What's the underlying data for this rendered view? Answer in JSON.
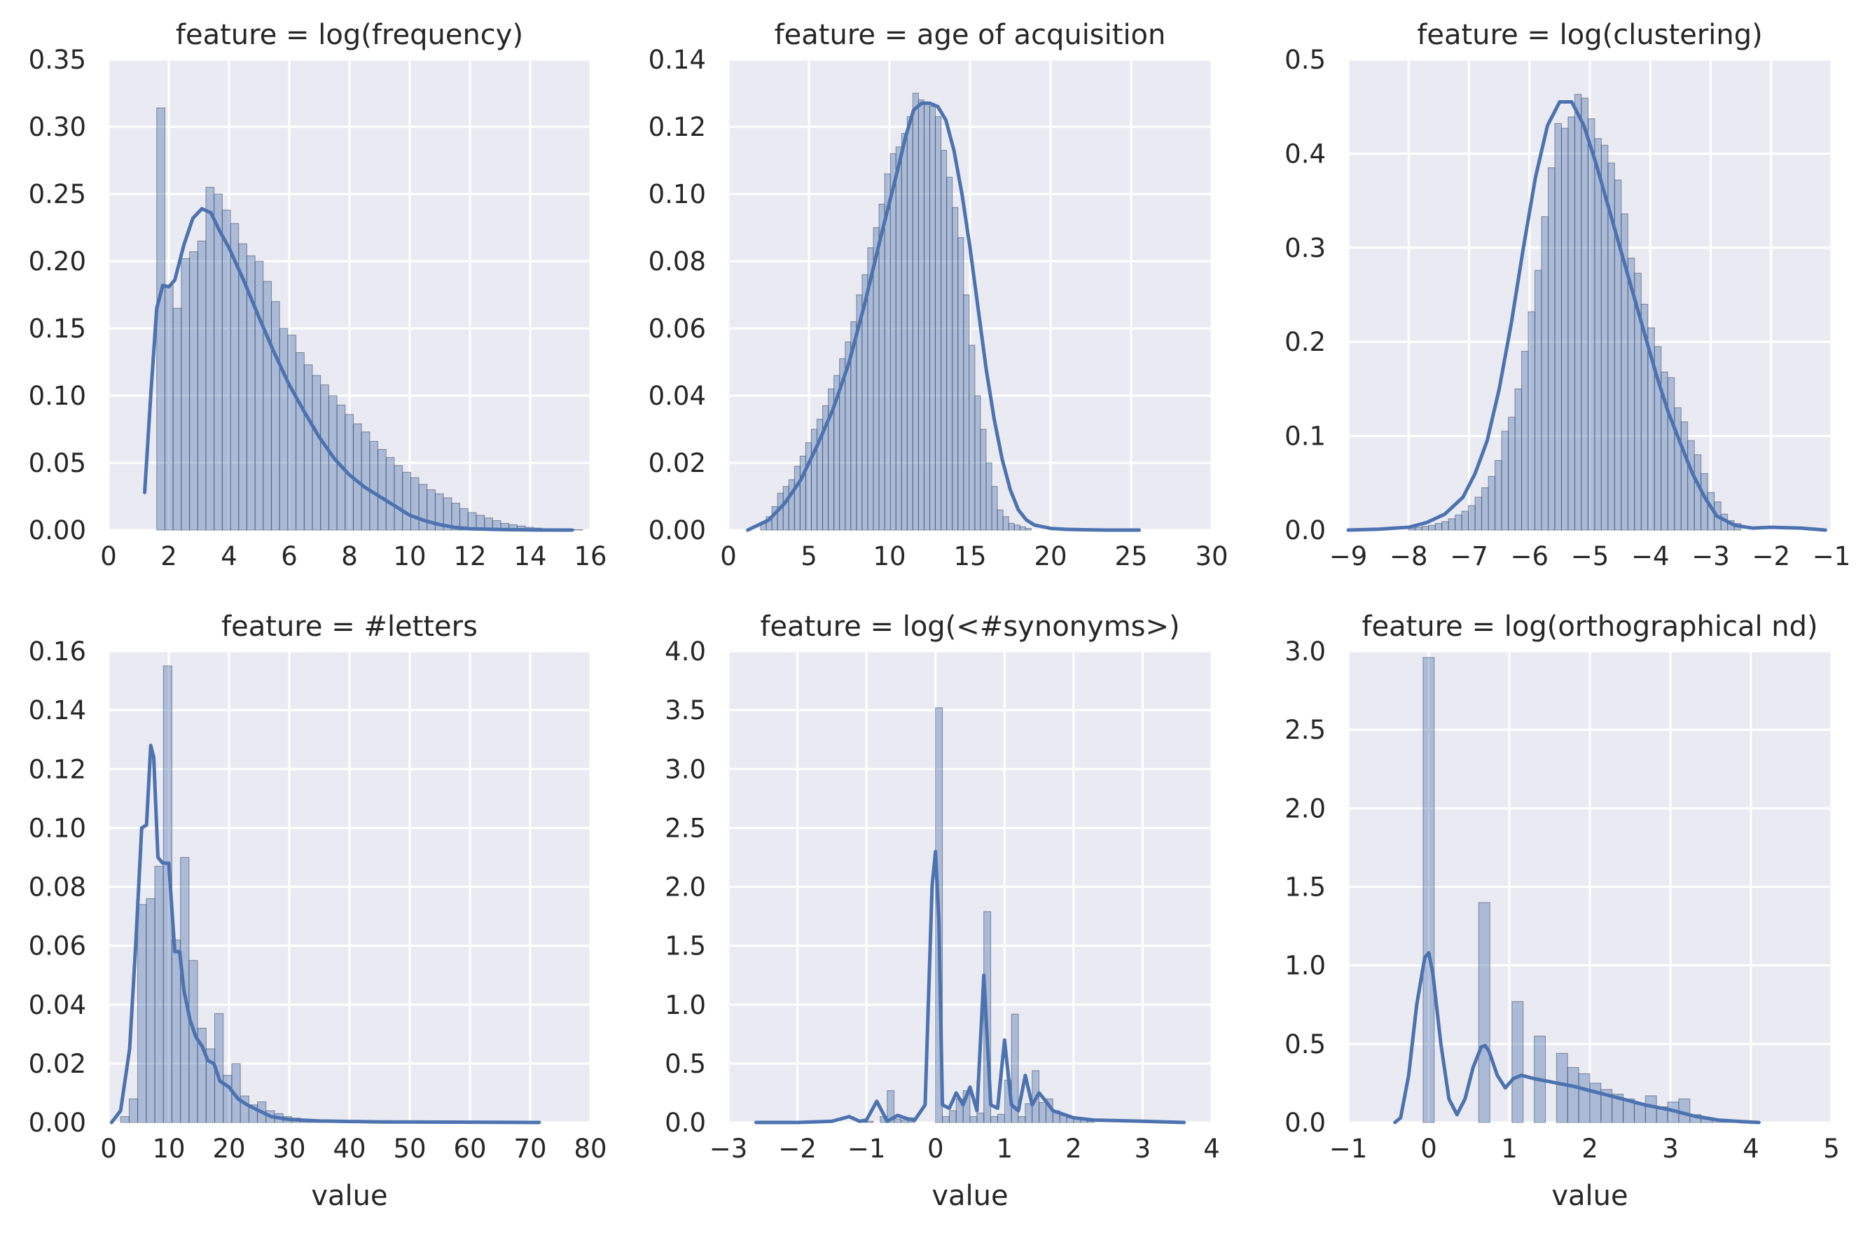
{
  "chart_data": [
    {
      "type": "histogram",
      "title": "feature = log(frequency)",
      "xlabel": "",
      "xlim": [
        0,
        16
      ],
      "ylim": [
        0,
        0.35
      ],
      "xticks": [
        "0",
        "2",
        "4",
        "6",
        "8",
        "10",
        "12",
        "14",
        "16"
      ],
      "yticks": [
        "0.00",
        "0.05",
        "0.10",
        "0.15",
        "0.20",
        "0.25",
        "0.30",
        "0.35"
      ],
      "bins": {
        "start": 1.6,
        "width": 0.272,
        "heights": [
          0.314,
          0.182,
          0.165,
          0.202,
          0.207,
          0.215,
          0.255,
          0.25,
          0.238,
          0.228,
          0.213,
          0.204,
          0.2,
          0.185,
          0.17,
          0.15,
          0.145,
          0.132,
          0.123,
          0.115,
          0.108,
          0.1,
          0.093,
          0.086,
          0.079,
          0.073,
          0.066,
          0.06,
          0.054,
          0.048,
          0.043,
          0.039,
          0.034,
          0.03,
          0.027,
          0.024,
          0.02,
          0.016,
          0.013,
          0.011,
          0.009,
          0.007,
          0.005,
          0.004,
          0.003,
          0.002,
          0.0015,
          0.001,
          0.0008,
          0.0006,
          0.0004,
          0.0003
        ]
      },
      "kde": {
        "x": [
          1.2,
          1.4,
          1.6,
          1.8,
          2.0,
          2.2,
          2.5,
          2.8,
          3.1,
          3.4,
          3.7,
          4.0,
          4.5,
          5.0,
          5.5,
          6.0,
          6.5,
          7.0,
          7.5,
          8.0,
          8.5,
          9.0,
          9.5,
          10.0,
          10.5,
          11.0,
          11.5,
          12.0,
          13.0,
          14.0,
          15.4
        ],
        "y": [
          0.028,
          0.1,
          0.165,
          0.182,
          0.181,
          0.186,
          0.212,
          0.232,
          0.239,
          0.236,
          0.222,
          0.21,
          0.185,
          0.158,
          0.132,
          0.108,
          0.088,
          0.069,
          0.053,
          0.041,
          0.032,
          0.025,
          0.018,
          0.011,
          0.007,
          0.004,
          0.002,
          0.001,
          0.0004,
          0.0001,
          0.0
        ]
      }
    },
    {
      "type": "histogram",
      "title": "feature = age of acquisition",
      "xlabel": "",
      "xlim": [
        0,
        30
      ],
      "ylim": [
        0,
        0.14
      ],
      "xticks": [
        "0",
        "5",
        "10",
        "15",
        "20",
        "25",
        "30"
      ],
      "yticks": [
        "0.00",
        "0.02",
        "0.04",
        "0.06",
        "0.08",
        "0.10",
        "0.12",
        "0.14"
      ],
      "bins": {
        "start": 2.0,
        "width": 0.35,
        "heights": [
          0.002,
          0.004,
          0.007,
          0.011,
          0.013,
          0.015,
          0.019,
          0.022,
          0.026,
          0.03,
          0.033,
          0.037,
          0.042,
          0.046,
          0.051,
          0.056,
          0.062,
          0.07,
          0.076,
          0.084,
          0.09,
          0.097,
          0.106,
          0.112,
          0.114,
          0.118,
          0.123,
          0.13,
          0.128,
          0.127,
          0.126,
          0.123,
          0.113,
          0.105,
          0.096,
          0.087,
          0.07,
          0.055,
          0.04,
          0.03,
          0.02,
          0.013,
          0.006,
          0.004,
          0.002,
          0.0015,
          0.001,
          0.0005
        ]
      },
      "kde": {
        "x": [
          1.2,
          2.5,
          3.5,
          4.5,
          5.5,
          6.5,
          7.5,
          8.5,
          9.5,
          10.5,
          11.0,
          11.5,
          12.0,
          12.5,
          13.0,
          13.5,
          14.0,
          14.5,
          15.0,
          15.5,
          16.0,
          16.5,
          17.0,
          17.5,
          18.0,
          18.5,
          19.0,
          20.0,
          21.0,
          22.0,
          23.5,
          25.5
        ],
        "y": [
          0.0,
          0.003,
          0.008,
          0.015,
          0.025,
          0.036,
          0.05,
          0.068,
          0.088,
          0.107,
          0.117,
          0.125,
          0.127,
          0.127,
          0.126,
          0.122,
          0.113,
          0.1,
          0.084,
          0.066,
          0.048,
          0.033,
          0.021,
          0.012,
          0.006,
          0.003,
          0.0015,
          0.0005,
          0.0002,
          0.0001,
          0.0,
          0.0
        ]
      }
    },
    {
      "type": "histogram",
      "title": "feature = log(clustering)",
      "xlabel": "",
      "xlim": [
        -9,
        -1
      ],
      "ylim": [
        0,
        0.5
      ],
      "xticks": [
        "−9",
        "−8",
        "−7",
        "−6",
        "−5",
        "−4",
        "−3",
        "−2",
        "−1"
      ],
      "yticks": [
        "0.0",
        "0.1",
        "0.2",
        "0.3",
        "0.4",
        "0.5"
      ],
      "bins": {
        "start": -8.0,
        "width": 0.11,
        "heights": [
          0.002,
          0.003,
          0.004,
          0.005,
          0.007,
          0.009,
          0.012,
          0.016,
          0.02,
          0.026,
          0.035,
          0.045,
          0.057,
          0.074,
          0.105,
          0.12,
          0.15,
          0.19,
          0.232,
          0.276,
          0.333,
          0.385,
          0.432,
          0.427,
          0.439,
          0.463,
          0.459,
          0.437,
          0.416,
          0.409,
          0.39,
          0.372,
          0.336,
          0.289,
          0.273,
          0.24,
          0.215,
          0.195,
          0.168,
          0.162,
          0.13,
          0.115,
          0.095,
          0.08,
          0.06,
          0.04,
          0.03,
          0.017,
          0.01,
          0.007
        ]
      },
      "kde": {
        "x": [
          -9.0,
          -8.5,
          -8.0,
          -7.7,
          -7.4,
          -7.1,
          -6.9,
          -6.7,
          -6.5,
          -6.3,
          -6.1,
          -5.9,
          -5.7,
          -5.5,
          -5.3,
          -5.1,
          -4.9,
          -4.7,
          -4.5,
          -4.3,
          -4.1,
          -3.9,
          -3.7,
          -3.5,
          -3.3,
          -3.1,
          -2.9,
          -2.6,
          -2.3,
          -2.0,
          -1.5,
          -1.1
        ],
        "y": [
          0.0,
          0.001,
          0.003,
          0.008,
          0.017,
          0.035,
          0.06,
          0.095,
          0.15,
          0.22,
          0.3,
          0.375,
          0.43,
          0.455,
          0.455,
          0.43,
          0.39,
          0.345,
          0.3,
          0.255,
          0.21,
          0.165,
          0.125,
          0.092,
          0.06,
          0.035,
          0.015,
          0.005,
          0.002,
          0.003,
          0.002,
          0.0
        ]
      }
    },
    {
      "type": "histogram",
      "title": "feature = #letters",
      "xlabel": "value",
      "xlim": [
        0,
        80
      ],
      "ylim": [
        0,
        0.16
      ],
      "xticks": [
        "0",
        "10",
        "20",
        "30",
        "40",
        "50",
        "60",
        "70",
        "80"
      ],
      "yticks": [
        "0.00",
        "0.02",
        "0.04",
        "0.06",
        "0.08",
        "0.10",
        "0.12",
        "0.14",
        "0.16"
      ],
      "bins": {
        "start": 2.0,
        "width": 1.42,
        "heights": [
          0.002,
          0.008,
          0.074,
          0.076,
          0.087,
          0.155,
          0.062,
          0.09,
          0.055,
          0.032,
          0.025,
          0.037,
          0.016,
          0.02,
          0.009,
          0.006,
          0.007,
          0.004,
          0.003,
          0.002,
          0.0015,
          0.001,
          0.0008,
          0.0006,
          0.0005,
          0.0004,
          0.0003,
          0.0002,
          0.0002,
          0.0001
        ]
      },
      "kde": {
        "x": [
          0.5,
          2.0,
          3.5,
          4.5,
          5.5,
          6.3,
          7.0,
          7.5,
          8.2,
          9.0,
          10.0,
          11.0,
          11.8,
          12.5,
          13.5,
          14.5,
          15.5,
          16.5,
          17.5,
          18.5,
          20.0,
          21.5,
          23.0,
          25.0,
          27.0,
          30.0,
          35.0,
          45.0,
          60.0,
          71.5
        ],
        "y": [
          0.0,
          0.004,
          0.025,
          0.06,
          0.1,
          0.101,
          0.128,
          0.124,
          0.09,
          0.088,
          0.088,
          0.058,
          0.058,
          0.045,
          0.035,
          0.029,
          0.026,
          0.021,
          0.02,
          0.014,
          0.012,
          0.008,
          0.006,
          0.004,
          0.002,
          0.001,
          0.0005,
          0.0002,
          0.0001,
          0.0
        ]
      }
    },
    {
      "type": "histogram",
      "title": "feature = log(<#synonyms>)",
      "xlabel": "value",
      "xlim": [
        -3,
        4
      ],
      "ylim": [
        0,
        4.0
      ],
      "xticks": [
        "−3",
        "−2",
        "−1",
        "0",
        "1",
        "2",
        "3",
        "4"
      ],
      "yticks": [
        "0.0",
        "0.5",
        "1.0",
        "1.5",
        "2.0",
        "2.5",
        "3.0",
        "3.5",
        "4.0"
      ],
      "bins": {
        "start": -1.1,
        "width": 0.1,
        "heights": [
          0.02,
          0.01,
          0.0,
          0.05,
          0.27,
          0.03,
          0.02,
          0.04,
          0.0,
          0.0,
          0.0,
          3.52,
          0.05,
          0.1,
          0.2,
          0.27,
          0.05,
          0.08,
          1.79,
          0.05,
          0.07,
          0.36,
          0.92,
          0.05,
          0.16,
          0.44,
          0.17,
          0.2,
          0.1,
          0.06,
          0.04,
          0.03,
          0.02,
          0.01
        ]
      },
      "kde": {
        "x": [
          -2.6,
          -2.0,
          -1.5,
          -1.25,
          -1.1,
          -1.0,
          -0.85,
          -0.7,
          -0.55,
          -0.4,
          -0.3,
          -0.15,
          -0.05,
          0.0,
          0.05,
          0.1,
          0.2,
          0.3,
          0.4,
          0.5,
          0.6,
          0.7,
          0.8,
          0.9,
          1.0,
          1.1,
          1.2,
          1.3,
          1.4,
          1.5,
          1.6,
          1.7,
          1.8,
          2.0,
          2.3,
          3.0,
          3.6
        ],
        "y": [
          0.0,
          0.0,
          0.01,
          0.05,
          0.01,
          0.02,
          0.18,
          0.01,
          0.06,
          0.03,
          0.02,
          0.15,
          2.0,
          2.3,
          1.7,
          0.15,
          0.12,
          0.25,
          0.15,
          0.3,
          0.1,
          1.25,
          0.15,
          0.12,
          0.7,
          0.15,
          0.1,
          0.4,
          0.15,
          0.25,
          0.18,
          0.1,
          0.08,
          0.04,
          0.02,
          0.01,
          0.0
        ]
      }
    },
    {
      "type": "histogram",
      "title": "feature = log(orthographical nd)",
      "xlabel": "value",
      "xlim": [
        -1,
        5
      ],
      "ylim": [
        0,
        3.0
      ],
      "xticks": [
        "−1",
        "0",
        "1",
        "2",
        "3",
        "4",
        "5"
      ],
      "yticks": [
        "0.0",
        "0.5",
        "1.0",
        "1.5",
        "2.0",
        "2.5",
        "3.0"
      ],
      "bins": {
        "start": -0.07,
        "width": 0.138,
        "heights": [
          2.96,
          0,
          0,
          0,
          0,
          1.4,
          0,
          0,
          0.77,
          0,
          0.55,
          0,
          0.44,
          0.35,
          0.31,
          0.25,
          0.21,
          0.18,
          0.15,
          0.12,
          0.17,
          0.1,
          0.13,
          0.15,
          0.05,
          0.03,
          0.02,
          0.01,
          0.005
        ]
      },
      "kde": {
        "x": [
          -0.42,
          -0.35,
          -0.25,
          -0.15,
          -0.05,
          0.0,
          0.05,
          0.15,
          0.25,
          0.35,
          0.45,
          0.55,
          0.65,
          0.7,
          0.75,
          0.85,
          0.95,
          1.05,
          1.15,
          1.3,
          1.5,
          1.8,
          2.1,
          2.4,
          2.7,
          3.0,
          3.3,
          3.6,
          3.9,
          4.1
        ],
        "y": [
          0.0,
          0.03,
          0.3,
          0.75,
          1.05,
          1.08,
          0.95,
          0.5,
          0.15,
          0.05,
          0.15,
          0.35,
          0.48,
          0.49,
          0.45,
          0.3,
          0.22,
          0.28,
          0.3,
          0.28,
          0.26,
          0.23,
          0.19,
          0.15,
          0.11,
          0.08,
          0.04,
          0.015,
          0.005,
          0.0
        ]
      }
    }
  ]
}
